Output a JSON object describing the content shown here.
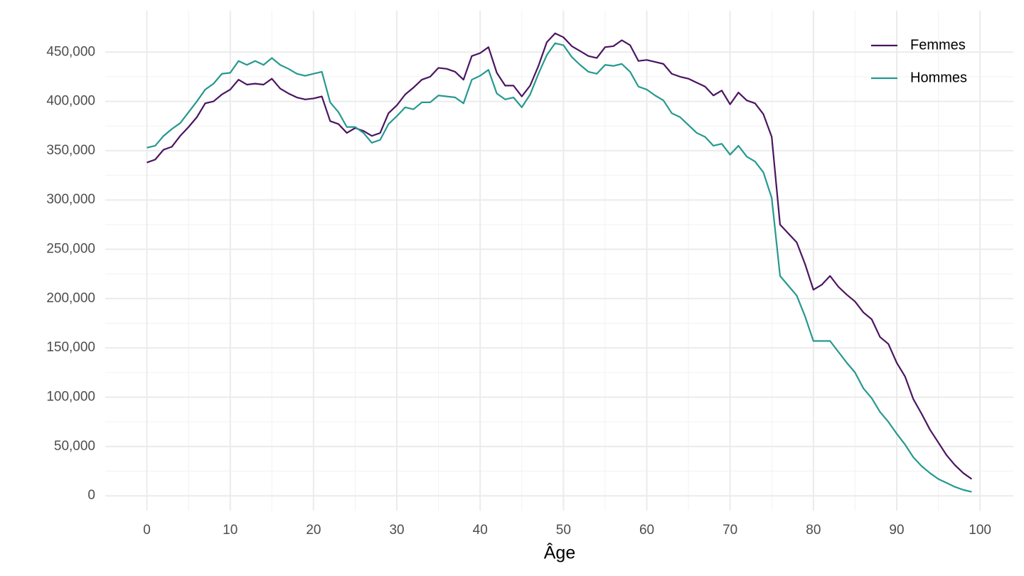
{
  "chart_data": {
    "type": "line",
    "x_label": "Âge",
    "x": [
      0,
      1,
      2,
      3,
      4,
      5,
      6,
      7,
      8,
      9,
      10,
      11,
      12,
      13,
      14,
      15,
      16,
      17,
      18,
      19,
      20,
      21,
      22,
      23,
      24,
      25,
      26,
      27,
      28,
      29,
      30,
      31,
      32,
      33,
      34,
      35,
      36,
      37,
      38,
      39,
      40,
      41,
      42,
      43,
      44,
      45,
      46,
      47,
      48,
      49,
      50,
      51,
      52,
      53,
      54,
      55,
      56,
      57,
      58,
      59,
      60,
      61,
      62,
      63,
      64,
      65,
      66,
      67,
      68,
      69,
      70,
      71,
      72,
      73,
      74,
      75,
      76,
      77,
      78,
      79,
      80,
      81,
      82,
      83,
      84,
      85,
      86,
      87,
      88,
      89,
      90,
      91,
      92,
      93,
      94,
      95,
      96,
      97,
      98,
      99
    ],
    "series": [
      {
        "name": "Femmes",
        "color": "#4b1560",
        "values": [
          338000,
          341000,
          351000,
          354000,
          365000,
          374000,
          384000,
          398000,
          400000,
          407000,
          412000,
          422000,
          417000,
          418000,
          417000,
          423000,
          413000,
          408000,
          404000,
          402000,
          403000,
          405000,
          380000,
          377000,
          368000,
          373000,
          370000,
          365000,
          368000,
          388000,
          396000,
          407000,
          414000,
          422000,
          425000,
          434000,
          433000,
          430000,
          422000,
          446000,
          449000,
          455000,
          429000,
          416000,
          416000,
          405000,
          416000,
          436000,
          460000,
          469000,
          465000,
          456000,
          451000,
          446000,
          444000,
          455000,
          456000,
          462000,
          457000,
          441000,
          442000,
          440000,
          438000,
          428000,
          425000,
          423000,
          419000,
          415000,
          406000,
          411000,
          397000,
          409000,
          401000,
          398000,
          387000,
          364000,
          275000,
          266000,
          257000,
          235000,
          209000,
          214000,
          223000,
          212000,
          204000,
          197000,
          186000,
          179000,
          161000,
          154000,
          135000,
          121000,
          98000,
          83000,
          67000,
          54000,
          41000,
          31000,
          23000,
          17000
        ]
      },
      {
        "name": "Hommes",
        "color": "#26998f",
        "values": [
          353000,
          355000,
          365000,
          372000,
          378000,
          389000,
          400000,
          412000,
          418000,
          428000,
          429000,
          441000,
          437000,
          441000,
          437000,
          444000,
          437000,
          433000,
          428000,
          426000,
          428000,
          430000,
          399000,
          389000,
          374000,
          374000,
          368000,
          358000,
          361000,
          377000,
          385000,
          394000,
          392000,
          399000,
          399000,
          406000,
          405000,
          404000,
          398000,
          422000,
          426000,
          432000,
          408000,
          402000,
          404000,
          394000,
          407000,
          428000,
          447000,
          459000,
          457000,
          445000,
          437000,
          430000,
          428000,
          437000,
          436000,
          438000,
          430000,
          415000,
          412000,
          406000,
          401000,
          388000,
          384000,
          376000,
          368000,
          364000,
          355000,
          357000,
          346000,
          355000,
          344000,
          339000,
          328000,
          302000,
          223000,
          213000,
          203000,
          182000,
          157000,
          157000,
          157000,
          146000,
          135000,
          125000,
          109000,
          99000,
          85000,
          75000,
          63000,
          52000,
          39000,
          30000,
          23000,
          17000,
          13000,
          9000,
          6000,
          4000
        ]
      }
    ],
    "xlim": [
      -5,
      104
    ],
    "ylim": [
      -15000,
      492000
    ],
    "xticks": [
      0,
      10,
      20,
      30,
      40,
      50,
      60,
      70,
      80,
      90,
      100
    ],
    "yticks": [
      0,
      {
        "value": 50000,
        "label": "50,000"
      },
      {
        "value": 100000,
        "label": "100,000"
      },
      {
        "value": 150000,
        "label": "150,000"
      },
      {
        "value": 200000,
        "label": "200,000"
      },
      {
        "value": 250000,
        "label": "250,000"
      },
      {
        "value": 300000,
        "label": "300,000"
      },
      {
        "value": 350000,
        "label": "350,000"
      },
      {
        "value": 400000,
        "label": "400,000"
      },
      {
        "value": 450000,
        "label": "450,000"
      }
    ],
    "grid": true,
    "minor_grid": true,
    "legend_position": "top-right"
  }
}
